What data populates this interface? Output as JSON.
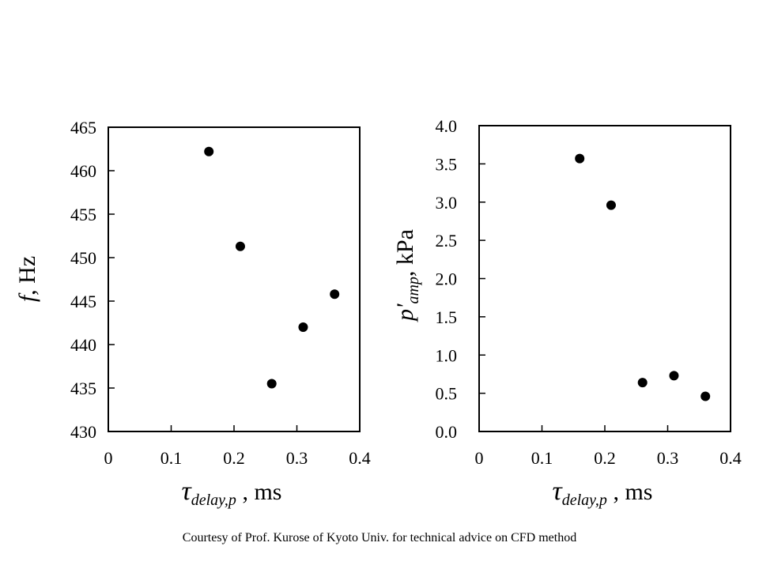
{
  "chart_data": [
    {
      "type": "scatter",
      "x": [
        0.16,
        0.21,
        0.26,
        0.31,
        0.36
      ],
      "y": [
        462.2,
        451.3,
        435.5,
        442.0,
        445.8
      ],
      "xlim": [
        0,
        0.4
      ],
      "ylim": [
        430,
        465
      ],
      "xticks": [
        "0",
        "0.1",
        "0.2",
        "0.3",
        "0.4"
      ],
      "yticks": [
        "430",
        "435",
        "440",
        "445",
        "450",
        "455",
        "460",
        "465"
      ],
      "xlabel": {
        "main": "τ",
        "sub": "delay,p",
        "rest": " , ms"
      },
      "ylabel": {
        "main": "f",
        "rest": ", Hz"
      },
      "marker_color": "#000000",
      "grid": false,
      "legend": "none"
    },
    {
      "type": "scatter",
      "x": [
        0.16,
        0.21,
        0.26,
        0.31,
        0.36
      ],
      "y": [
        3.57,
        2.96,
        0.64,
        0.73,
        0.46
      ],
      "xlim": [
        0,
        0.4
      ],
      "ylim": [
        0,
        4
      ],
      "xticks": [
        "0",
        "0.1",
        "0.2",
        "0.3",
        "0.4"
      ],
      "yticks": [
        "0.0",
        "0.5",
        "1.0",
        "1.5",
        "2.0",
        "2.5",
        "3.0",
        "3.5",
        "4.0"
      ],
      "xlabel": {
        "main": "τ",
        "sub": "delay,p",
        "rest": " , ms"
      },
      "ylabel": {
        "main": "p'",
        "sub": "amp",
        "rest": ", kPa"
      },
      "marker_color": "#000000",
      "grid": false,
      "legend": "none"
    }
  ],
  "footer": {
    "credit": "Courtesy of Prof. Kurose of Kyoto Univ.  for technical advice on CFD method"
  }
}
